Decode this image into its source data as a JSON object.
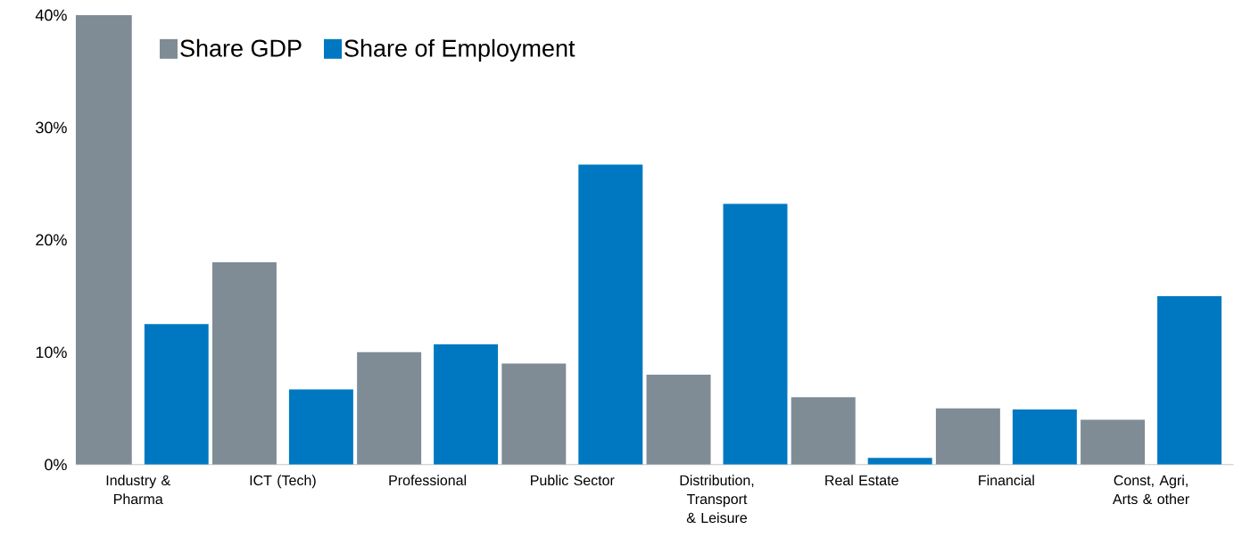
{
  "chart_data": {
    "type": "bar",
    "categories": [
      "Industry & Pharma",
      "ICT (Tech)",
      "Professional",
      "Public Sector",
      "Distribution, Transport & Leisure",
      "Real Estate",
      "Financial",
      "Const, Agri, Arts & other"
    ],
    "series": [
      {
        "name": "Share GDP",
        "color": "#7f8c96",
        "values": [
          40,
          18,
          10,
          9,
          8,
          6,
          5,
          4
        ]
      },
      {
        "name": "Share of Employment",
        "color": "#0078c1",
        "values": [
          12.5,
          6.7,
          10.7,
          26.7,
          23.2,
          0.6,
          4.9,
          15
        ]
      }
    ],
    "ylim": [
      0,
      40
    ],
    "yticks": [
      {
        "value": 0,
        "label": "0%"
      },
      {
        "value": 10,
        "label": "10%"
      },
      {
        "value": 20,
        "label": "20%"
      },
      {
        "value": 30,
        "label": "30%"
      },
      {
        "value": 40,
        "label": "40%"
      }
    ],
    "grid": false,
    "legend": "top left"
  }
}
